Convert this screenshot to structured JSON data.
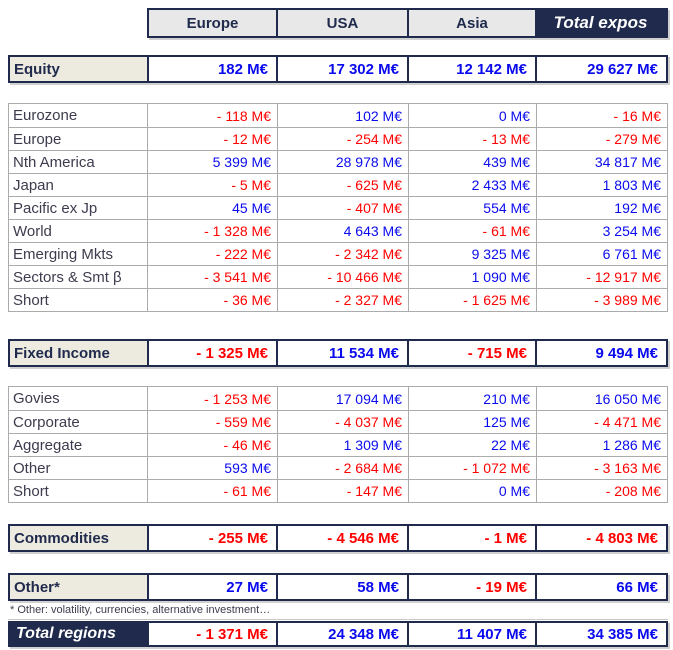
{
  "colors": {
    "navy": "#1f2a4c",
    "negative_red": "#ff0000",
    "positive_blue": "#0a0aee",
    "header_bg": "#e8e8e8",
    "section_label_bg": "#edeae0",
    "detail_border": "#ababab"
  },
  "chart_data": {
    "type": "table",
    "unit": "M€",
    "columns": [
      "Europe",
      "USA",
      "Asia",
      "Total expos"
    ],
    "sections": [
      {
        "kind": "summary",
        "label": "Equity",
        "values": [
          "182 M€",
          "17 302 M€",
          "12 142 M€",
          "29 627 M€"
        ]
      },
      {
        "kind": "detail",
        "rows": [
          {
            "label": "Eurozone",
            "values": [
              "- 118 M€",
              "102 M€",
              "0 M€",
              "- 16 M€"
            ]
          },
          {
            "label": "Europe",
            "values": [
              "- 12 M€",
              "- 254 M€",
              "- 13 M€",
              "- 279 M€"
            ]
          },
          {
            "label": "Nth America",
            "values": [
              "5 399 M€",
              "28 978 M€",
              "439 M€",
              "34 817 M€"
            ]
          },
          {
            "label": "Japan",
            "values": [
              "- 5 M€",
              "- 625 M€",
              "2 433 M€",
              "1 803 M€"
            ]
          },
          {
            "label": "Pacific ex Jp",
            "values": [
              "45 M€",
              "- 407 M€",
              "554 M€",
              "192 M€"
            ]
          },
          {
            "label": "World",
            "values": [
              "- 1 328 M€",
              "4 643 M€",
              "- 61 M€",
              "3 254 M€"
            ]
          },
          {
            "label": "Emerging Mkts",
            "values": [
              "- 222 M€",
              "- 2 342 M€",
              "9 325 M€",
              "6 761 M€"
            ]
          },
          {
            "label": "Sectors & Smt β",
            "values": [
              "- 3 541 M€",
              "- 10 466 M€",
              "1 090 M€",
              "- 12 917 M€"
            ]
          },
          {
            "label": "Short",
            "values": [
              "- 36 M€",
              "- 2 327 M€",
              "- 1 625 M€",
              "- 3 989 M€"
            ]
          }
        ]
      },
      {
        "kind": "summary",
        "label": "Fixed Income",
        "values": [
          "- 1 325 M€",
          "11 534 M€",
          "- 715 M€",
          "9 494 M€"
        ]
      },
      {
        "kind": "detail",
        "rows": [
          {
            "label": "Govies",
            "values": [
              "- 1 253 M€",
              "17 094 M€",
              "210 M€",
              "16 050 M€"
            ]
          },
          {
            "label": "Corporate",
            "values": [
              "- 559 M€",
              "- 4 037 M€",
              "125 M€",
              "- 4 471 M€"
            ]
          },
          {
            "label": "Aggregate",
            "values": [
              "- 46 M€",
              "1 309 M€",
              "22 M€",
              "1 286 M€"
            ]
          },
          {
            "label": "Other",
            "values": [
              "593 M€",
              "- 2 684 M€",
              "- 1 072 M€",
              "- 3 163 M€"
            ]
          },
          {
            "label": "Short",
            "values": [
              "- 61 M€",
              "- 147 M€",
              "0 M€",
              "- 208 M€"
            ]
          }
        ]
      },
      {
        "kind": "summary",
        "label": "Commodities",
        "values": [
          "- 255 M€",
          "- 4 546 M€",
          "- 1 M€",
          "- 4 803 M€"
        ]
      },
      {
        "kind": "summary",
        "label": "Other*",
        "values": [
          "27 M€",
          "58 M€",
          "- 19 M€",
          "66 M€"
        ]
      }
    ],
    "footnote": "* Other: volatility, currencies, alternative investment…",
    "total_row": {
      "label": "Total regions",
      "values": [
        "- 1 371 M€",
        "24 348 M€",
        "11 407 M€",
        "34 385 M€"
      ]
    }
  }
}
